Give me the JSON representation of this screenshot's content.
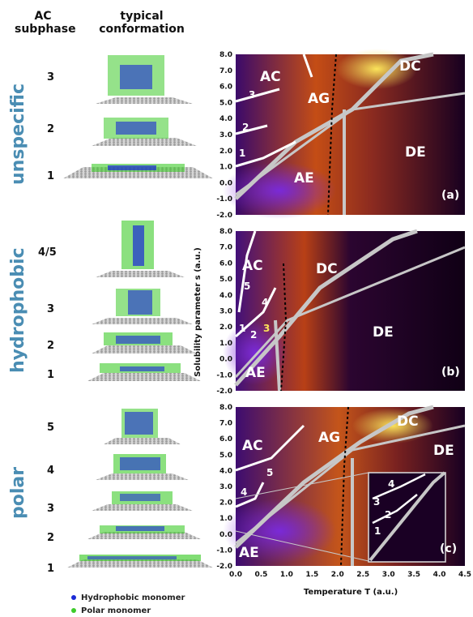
{
  "headers": {
    "subphase_line1": "AC",
    "subphase_line2": "subphase",
    "conf_line1": "typical",
    "conf_line2": "conformation"
  },
  "panels": [
    {
      "surface": "unspecific",
      "tag": "(a)",
      "subphases": [
        "3",
        "2",
        "1"
      ],
      "regions": [
        "AC",
        "AG",
        "DC",
        "DE",
        "AE",
        "3",
        "2",
        "1"
      ]
    },
    {
      "surface": "hydrophobic",
      "tag": "(b)",
      "subphases": [
        "4/5",
        "3",
        "2",
        "1"
      ],
      "regions": [
        "AC",
        "DC",
        "DE",
        "AE",
        "5",
        "4",
        "1",
        "2",
        "3"
      ]
    },
    {
      "surface": "polar",
      "tag": "(c)",
      "subphases": [
        "5",
        "4",
        "3",
        "2",
        "1"
      ],
      "regions": [
        "AC",
        "AG",
        "DC",
        "DE",
        "AE",
        "5",
        "4"
      ],
      "inset_labels": [
        "4",
        "3",
        "2",
        "1"
      ]
    }
  ],
  "axes": {
    "ylabel": "Solubility parameter s (a.u.)",
    "xlabel": "Temperature T (a.u.)",
    "y_ticks": [
      "8.0",
      "7.0",
      "6.0",
      "5.0",
      "4.0",
      "3.0",
      "2.0",
      "1.0",
      "0.0",
      "-1.0",
      "-2.0"
    ],
    "x_ticks": [
      "0.0",
      "0.5",
      "1.0",
      "1.5",
      "2.0",
      "2.5",
      "3.0",
      "3.5",
      "4.0",
      "4.5"
    ],
    "xlim": [
      0.0,
      4.5
    ],
    "ylim": [
      -2.0,
      8.0
    ]
  },
  "legend": {
    "hydrophobic": "Hydrophobic monomer",
    "polar": "Polar monomer"
  },
  "colors": {
    "surface_label": "#4a8db3",
    "hydrophobic": "#1b2ad6",
    "polar": "#3ecb2a",
    "substrate": "#b9b9b9",
    "map_dark": "#14001f",
    "map_purple": "#5a14a8",
    "map_orange": "#d8641a",
    "map_yellow": "#f6d84a",
    "boundary": "#c7c7c7"
  }
}
